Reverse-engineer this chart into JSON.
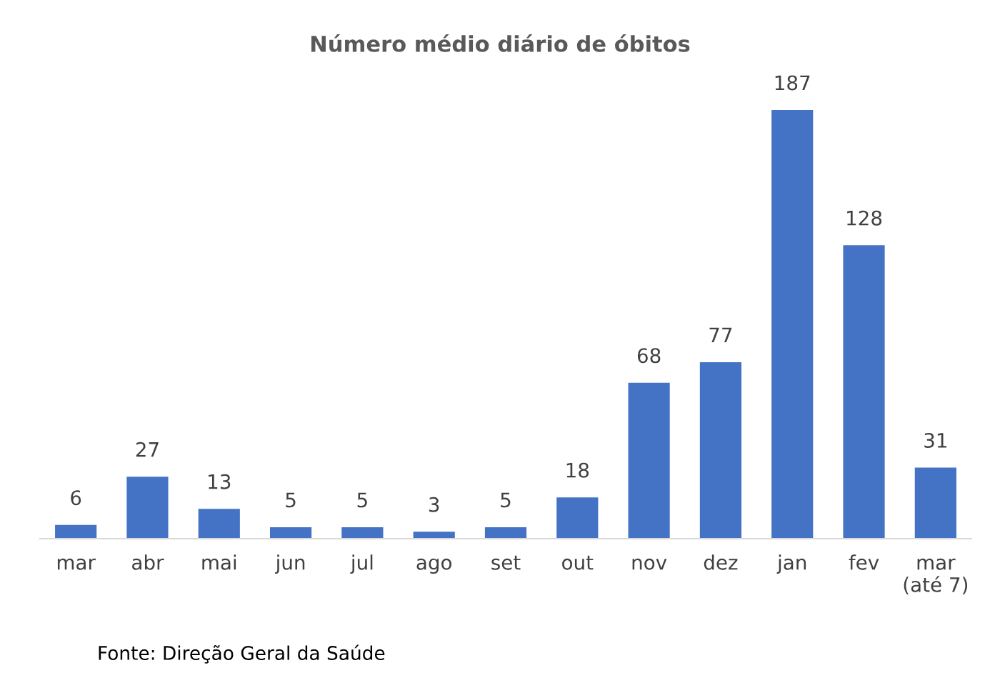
{
  "chart_data": {
    "type": "bar",
    "title": "Número médio diário de óbitos",
    "categories": [
      "mar",
      "abr",
      "mai",
      "jun",
      "jul",
      "ago",
      "set",
      "out",
      "nov",
      "dez",
      "jan",
      "fev",
      "mar\n(até 7)"
    ],
    "values": [
      6,
      27,
      13,
      5,
      5,
      3,
      5,
      18,
      68,
      77,
      187,
      128,
      31
    ],
    "color": "#4472c4",
    "data_labels": true,
    "grid": false,
    "annotations": [
      "Fonte: Direção Geral da Saúde"
    ]
  }
}
